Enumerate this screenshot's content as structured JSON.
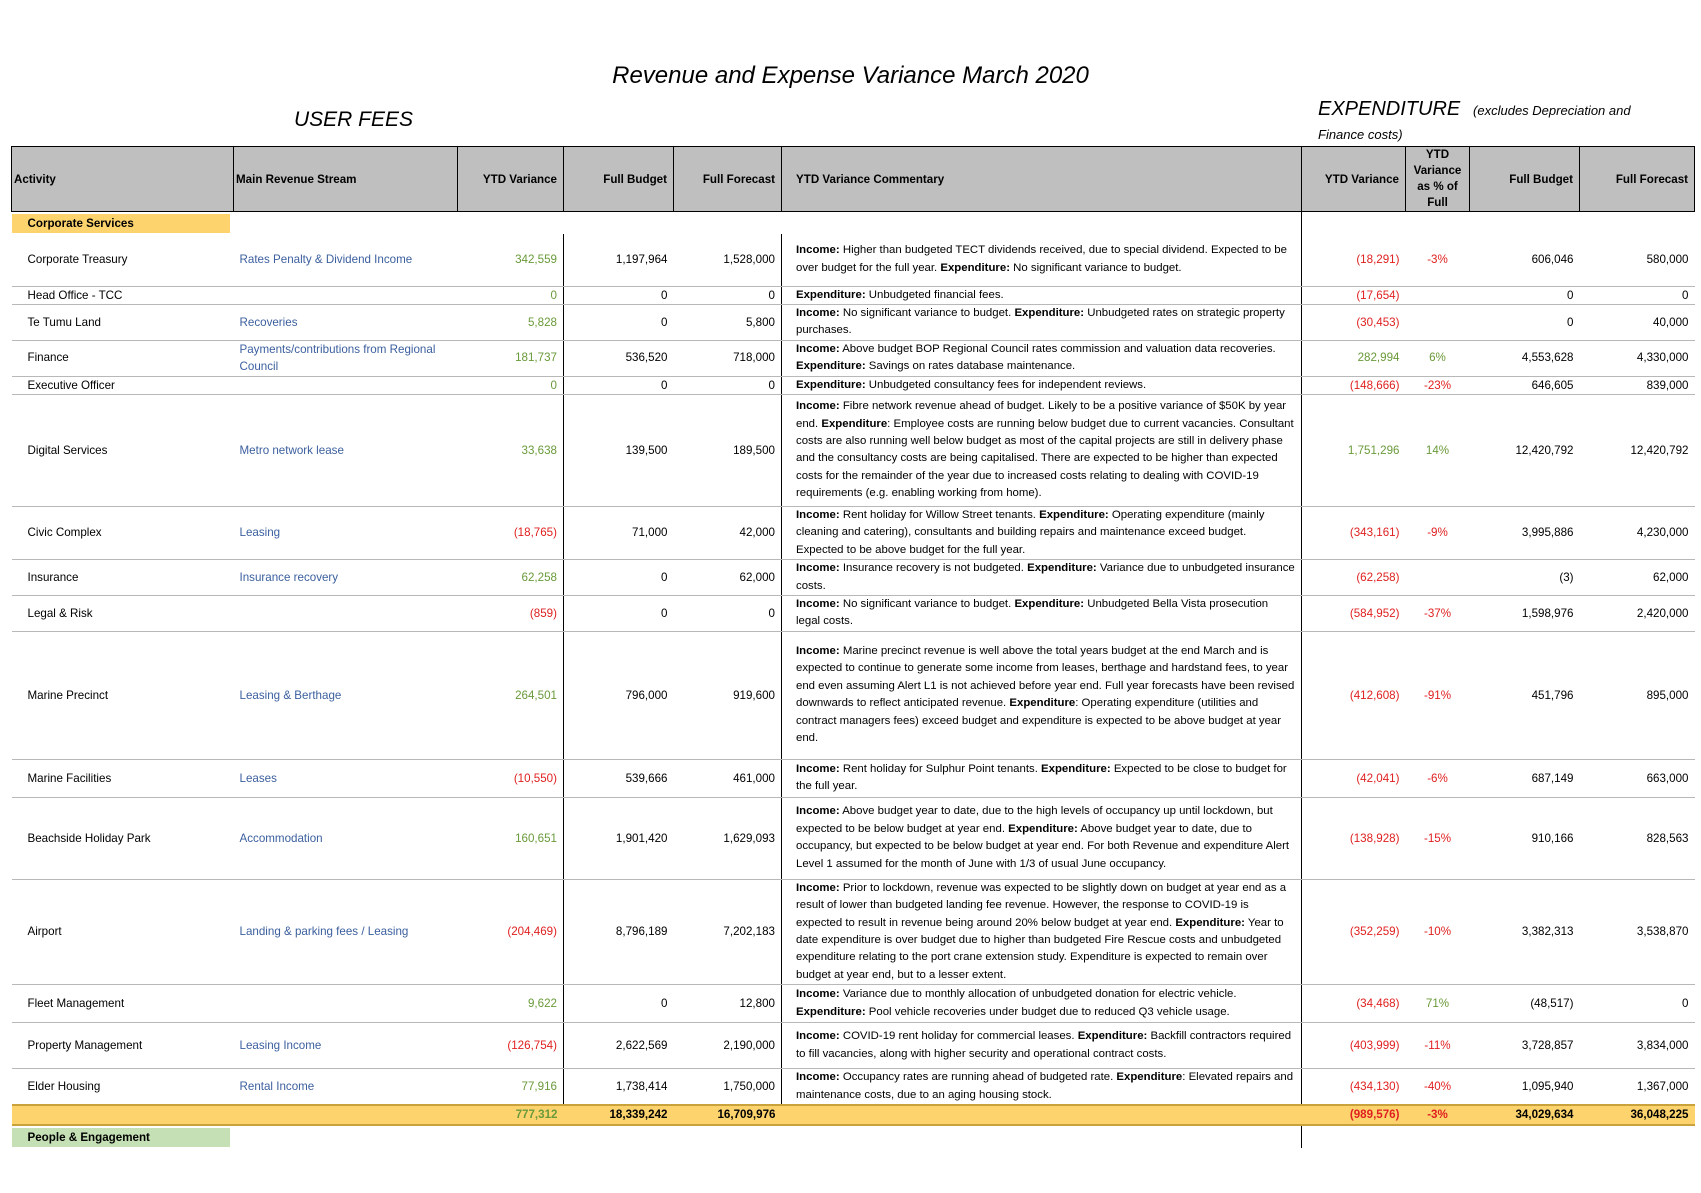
{
  "title": "Revenue and Expense Variance March 2020",
  "left_heading": "USER FEES",
  "right_heading": "EXPENDITURE",
  "right_heading_note_a": "(excludes Depreciation and",
  "right_heading_note_b": "Finance costs)",
  "columns": {
    "activity": "Activity",
    "stream": "Main Revenue Stream",
    "ytd_var": "YTD Variance",
    "full_budget": "Full Budget",
    "full_forecast": "Full Forecast",
    "commentary": "YTD Variance Commentary",
    "exp_ytd_var": "YTD Variance",
    "exp_pct": "YTD Variance as % of Full",
    "exp_full_budget": "Full Budget",
    "exp_full_forecast": "Full Forecast"
  },
  "sections": {
    "corporate": "Corporate Services",
    "people": "People & Engagement"
  },
  "rows": [
    {
      "activity": "Corporate Treasury",
      "stream": "Rates Penalty & Dividend Income",
      "ytd": "342,559",
      "ytd_sign": "pos",
      "budget": "1,197,964",
      "forecast": "1,528,000",
      "c1": "Income:",
      "c2": " Higher than budgeted TECT dividends received, due to special dividend. Expected to be over budget for the full year. ",
      "c3": "Expenditure:",
      "c4": " No significant variance to budget.",
      "e_ytd": "(18,291)",
      "e_sign": "neg",
      "e_pct": "-3%",
      "e_pct_sign": "neg",
      "e_budget": "606,046",
      "e_forecast": "580,000"
    },
    {
      "activity": "Head Office - TCC",
      "stream": "",
      "ytd": "0",
      "ytd_sign": "pos",
      "budget": "0",
      "forecast": "0",
      "c1": "Expenditure:",
      "c2": " Unbudgeted financial fees.",
      "c3": "",
      "c4": "",
      "e_ytd": "(17,654)",
      "e_sign": "neg",
      "e_pct": "",
      "e_pct_sign": "neg",
      "e_budget": "0",
      "e_forecast": "0"
    },
    {
      "activity": "Te Tumu Land",
      "stream": "Recoveries",
      "ytd": "5,828",
      "ytd_sign": "pos",
      "budget": "0",
      "forecast": "5,800",
      "c1": "Income:",
      "c2": " No significant variance to budget. ",
      "c3": "Expenditure:",
      "c4": " Unbudgeted rates on strategic property purchases.",
      "e_ytd": "(30,453)",
      "e_sign": "neg",
      "e_pct": "",
      "e_pct_sign": "neg",
      "e_budget": "0",
      "e_forecast": "40,000"
    },
    {
      "activity": "Finance",
      "stream": "Payments/contributions from Regional Council",
      "ytd": "181,737",
      "ytd_sign": "pos",
      "budget": "536,520",
      "forecast": "718,000",
      "c1": "Income:",
      "c2": " Above budget BOP Regional Council rates commission and valuation data recoveries. ",
      "c3": "Expenditure:",
      "c4": " Savings on rates database maintenance.",
      "e_ytd": "282,994",
      "e_sign": "pos",
      "e_pct": "6%",
      "e_pct_sign": "pos",
      "e_budget": "4,553,628",
      "e_forecast": "4,330,000"
    },
    {
      "activity": "Executive Officer",
      "stream": "",
      "ytd": "0",
      "ytd_sign": "pos",
      "budget": "0",
      "forecast": "0",
      "c1": "Expenditure:",
      "c2": " Unbudgeted consultancy fees for independent reviews.",
      "c3": "",
      "c4": "",
      "e_ytd": "(148,666)",
      "e_sign": "neg",
      "e_pct": "-23%",
      "e_pct_sign": "neg",
      "e_budget": "646,605",
      "e_forecast": "839,000"
    },
    {
      "activity": "Digital Services",
      "stream": "Metro network lease",
      "ytd": "33,638",
      "ytd_sign": "pos",
      "budget": "139,500",
      "forecast": "189,500",
      "c1": "Income:",
      "c2": " Fibre network revenue ahead of budget. Likely to be a positive variance of $50K by year end. ",
      "c3": "Expenditure",
      "c4": ": Employee costs are running below budget due to current vacancies. Consultant costs are also running well below budget as most of the capital projects are still in delivery phase and the consultancy costs are being capitalised. There are expected to be higher than expected costs for the remainder of the year due to increased costs relating to dealing with COVID-19 requirements (e.g. enabling working from home).",
      "e_ytd": "1,751,296",
      "e_sign": "pos",
      "e_pct": "14%",
      "e_pct_sign": "pos",
      "e_budget": "12,420,792",
      "e_forecast": "12,420,792"
    },
    {
      "activity": "Civic Complex",
      "stream": "Leasing",
      "ytd": "(18,765)",
      "ytd_sign": "neg",
      "budget": "71,000",
      "forecast": "42,000",
      "c1": "Income:",
      "c2": " Rent holiday for Willow Street tenants. ",
      "c3": "Expenditure:",
      "c4": " Operating expenditure (mainly cleaning and catering), consultants and building repairs and maintenance exceed budget.  Expected to be above budget for the full year.",
      "e_ytd": "(343,161)",
      "e_sign": "neg",
      "e_pct": "-9%",
      "e_pct_sign": "neg",
      "e_budget": "3,995,886",
      "e_forecast": "4,230,000"
    },
    {
      "activity": "Insurance",
      "stream": "Insurance recovery",
      "ytd": "62,258",
      "ytd_sign": "pos",
      "budget": "0",
      "forecast": "62,000",
      "c1": "Income:",
      "c2": " Insurance recovery is not budgeted. ",
      "c3": "Expenditure:",
      "c4": " Variance due to unbudgeted insurance costs.",
      "e_ytd": "(62,258)",
      "e_sign": "neg",
      "e_pct": "",
      "e_pct_sign": "neg",
      "e_budget": "(3)",
      "e_forecast": "62,000"
    },
    {
      "activity": "Legal & Risk",
      "stream": "",
      "ytd": "(859)",
      "ytd_sign": "neg",
      "budget": "0",
      "forecast": "0",
      "c1": "Income:",
      "c2": " No significant variance to budget. ",
      "c3": "Expenditure:",
      "c4": " Unbudgeted Bella Vista prosecution legal costs.",
      "e_ytd": "(584,952)",
      "e_sign": "neg",
      "e_pct": "-37%",
      "e_pct_sign": "neg",
      "e_budget": "1,598,976",
      "e_forecast": "2,420,000"
    },
    {
      "activity": "Marine Precinct",
      "stream": "Leasing & Berthage",
      "ytd": "264,501",
      "ytd_sign": "pos",
      "budget": "796,000",
      "forecast": "919,600",
      "c1": "Income:",
      "c2": " Marine precinct revenue is well above the total years budget at the end March and is expected to continue to generate some income  from leases, berthage and  hardstand fees, to year end even assuming Alert L1 is not achieved before year end.  Full year forecasts have been revised downwards to reflect anticipated revenue. ",
      "c3": "Expenditure",
      "c4": ": Operating expenditure (utilities and contract managers fees) exceed budget and expenditure is expected to be above budget at year end.",
      "e_ytd": "(412,608)",
      "e_sign": "neg",
      "e_pct": "-91%",
      "e_pct_sign": "neg",
      "e_budget": "451,796",
      "e_forecast": "895,000"
    },
    {
      "activity": "Marine Facilities",
      "stream": "Leases",
      "ytd": "(10,550)",
      "ytd_sign": "neg",
      "budget": "539,666",
      "forecast": "461,000",
      "c1": "Income:",
      "c2": " Rent holiday for Sulphur Point tenants. ",
      "c3": "Expenditure:",
      "c4": " Expected to be close to budget for the full year.",
      "e_ytd": "(42,041)",
      "e_sign": "neg",
      "e_pct": "-6%",
      "e_pct_sign": "neg",
      "e_budget": "687,149",
      "e_forecast": "663,000"
    },
    {
      "activity": "Beachside Holiday Park",
      "stream": "Accommodation",
      "ytd": "160,651",
      "ytd_sign": "pos",
      "budget": "1,901,420",
      "forecast": "1,629,093",
      "c1": "Income:",
      "c2": " Above budget  year to date, due to the high levels of occupancy up until lockdown, but expected to be below budget at year end. ",
      "c3": "Expenditure:",
      "c4": " Above budget year to date, due to occupancy, but expected to be below budget at year end. For both Revenue and expenditure Alert Level 1 assumed for the month of June with 1/3 of usual June occupancy.",
      "e_ytd": "(138,928)",
      "e_sign": "neg",
      "e_pct": "-15%",
      "e_pct_sign": "neg",
      "e_budget": "910,166",
      "e_forecast": "828,563"
    },
    {
      "activity": "Airport",
      "stream": "Landing  & parking fees / Leasing",
      "ytd": "(204,469)",
      "ytd_sign": "neg",
      "budget": "8,796,189",
      "forecast": "7,202,183",
      "c1": "Income:",
      "c2": " Prior to lockdown, revenue was expected to be slightly down on budget at year end as a result of lower than budgeted landing fee revenue. However, the response to COVID-19 is expected to result in revenue being around 20% below budget at year end. ",
      "c3": "Expenditure:",
      "c4": " Year to date expenditure is over budget due to higher than budgeted Fire Rescue costs and unbudgeted expenditure relating to the port crane extension study. Expenditure is expected to remain over budget at year end, but to a lesser extent.",
      "e_ytd": "(352,259)",
      "e_sign": "neg",
      "e_pct": "-10%",
      "e_pct_sign": "neg",
      "e_budget": "3,382,313",
      "e_forecast": "3,538,870"
    },
    {
      "activity": "Fleet Management",
      "stream": "",
      "ytd": "9,622",
      "ytd_sign": "pos",
      "budget": "0",
      "forecast": "12,800",
      "c1": "Income:",
      "c2": " Variance due to monthly allocation of unbudgeted donation for electric vehicle. ",
      "c3": "Expenditure:",
      "c4": " Pool vehicle recoveries under budget due to reduced Q3 vehicle usage.",
      "e_ytd": "(34,468)",
      "e_sign": "neg",
      "e_pct": "71%",
      "e_pct_sign": "pos",
      "e_budget": "(48,517)",
      "e_forecast": "0"
    },
    {
      "activity": "Property Management",
      "stream": "Leasing Income",
      "ytd": "(126,754)",
      "ytd_sign": "neg",
      "budget": "2,622,569",
      "forecast": "2,190,000",
      "c1": "Income:",
      "c2": "   COVID-19 rent holiday for commercial leases. ",
      "c3": "Expenditure:",
      "c4": " Backfill contractors required to fill vacancies, along with higher security and operational contract costs.",
      "e_ytd": "(403,999)",
      "e_sign": "neg",
      "e_pct": "-11%",
      "e_pct_sign": "neg",
      "e_budget": "3,728,857",
      "e_forecast": "3,834,000"
    },
    {
      "activity": "Elder Housing",
      "stream": "Rental Income",
      "ytd": "77,916",
      "ytd_sign": "pos",
      "budget": "1,738,414",
      "forecast": "1,750,000",
      "c1": "Income:",
      "c2": " Occupancy rates are running ahead of budgeted rate. ",
      "c3": "Expenditure",
      "c4": ": Elevated repairs and maintenance costs, due to an aging housing stock.",
      "e_ytd": "(434,130)",
      "e_sign": "neg",
      "e_pct": "-40%",
      "e_pct_sign": "neg",
      "e_budget": "1,095,940",
      "e_forecast": "1,367,000"
    }
  ],
  "row_heights": [
    52,
    18,
    32,
    32,
    18,
    112,
    48,
    32,
    32,
    128,
    38,
    82,
    98,
    38,
    46,
    32
  ],
  "total": {
    "ytd": "777,312",
    "budget": "18,339,242",
    "forecast": "16,709,976",
    "e_ytd": "(989,576)",
    "e_pct": "-3%",
    "e_budget": "34,029,634",
    "e_forecast": "36,048,225"
  }
}
